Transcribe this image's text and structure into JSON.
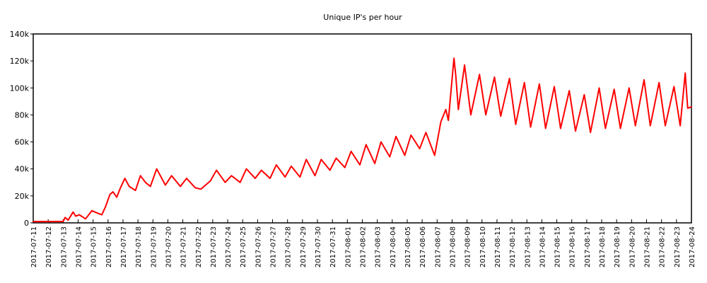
{
  "chart_data": {
    "type": "line",
    "title": "Unique IP's per hour",
    "xlabel": "",
    "ylabel": "",
    "ylim": [
      0,
      140000
    ],
    "yticks": [
      0,
      20000,
      40000,
      60000,
      80000,
      100000,
      120000,
      140000
    ],
    "ytick_labels": [
      "0",
      "20k",
      "40k",
      "60k",
      "80k",
      "100k",
      "120k",
      "140k"
    ],
    "x_range": [
      "2017-07-11",
      "2017-08-24"
    ],
    "xtick_labels": [
      "2017-07-11",
      "2017-07-12",
      "2017-07-13",
      "2017-07-14",
      "2017-07-15",
      "2017-07-16",
      "2017-07-17",
      "2017-07-18",
      "2017-07-19",
      "2017-07-20",
      "2017-07-21",
      "2017-07-22",
      "2017-07-23",
      "2017-07-24",
      "2017-07-25",
      "2017-07-26",
      "2017-07-27",
      "2017-07-28",
      "2017-07-29",
      "2017-07-30",
      "2017-07-31",
      "2017-08-01",
      "2017-08-02",
      "2017-08-03",
      "2017-08-04",
      "2017-08-05",
      "2017-08-06",
      "2017-08-07",
      "2017-08-08",
      "2017-08-09",
      "2017-08-10",
      "2017-08-11",
      "2017-08-12",
      "2017-08-13",
      "2017-08-14",
      "2017-08-15",
      "2017-08-16",
      "2017-08-17",
      "2017-08-18",
      "2017-08-19",
      "2017-08-20",
      "2017-08-21",
      "2017-08-22",
      "2017-08-23",
      "2017-08-24"
    ],
    "grid": false,
    "legend": false,
    "series": [
      {
        "color": "#ff0000",
        "x": [
          "2017-07-11 00:00",
          "2017-07-12 00:00",
          "2017-07-12 18:00",
          "2017-07-13 00:00",
          "2017-07-13 03:00",
          "2017-07-13 08:00",
          "2017-07-13 16:00",
          "2017-07-13 20:00",
          "2017-07-14 02:00",
          "2017-07-14 12:00",
          "2017-07-14 22:00",
          "2017-07-15 08:00",
          "2017-07-15 14:00",
          "2017-07-15 20:00",
          "2017-07-16 03:00",
          "2017-07-16 08:00",
          "2017-07-16 14:00",
          "2017-07-16 20:00",
          "2017-07-17 03:00",
          "2017-07-17 10:00",
          "2017-07-17 20:00",
          "2017-07-18 04:00",
          "2017-07-18 12:00",
          "2017-07-18 20:00",
          "2017-07-19 06:00",
          "2017-07-19 20:00",
          "2017-07-20 06:00",
          "2017-07-20 20:00",
          "2017-07-21 06:00",
          "2017-07-21 20:00",
          "2017-07-22 05:00",
          "2017-07-22 20:00",
          "2017-07-23 06:00",
          "2017-07-23 20:00",
          "2017-07-24 06:00",
          "2017-07-24 20:00",
          "2017-07-25 06:00",
          "2017-07-25 20:00",
          "2017-07-26 06:00",
          "2017-07-26 20:00",
          "2017-07-27 06:00",
          "2017-07-27 20:00",
          "2017-07-28 06:00",
          "2017-07-28 20:00",
          "2017-07-29 06:00",
          "2017-07-29 20:00",
          "2017-07-30 06:00",
          "2017-07-30 20:00",
          "2017-07-31 06:00",
          "2017-07-31 20:00",
          "2017-08-01 06:00",
          "2017-08-01 20:00",
          "2017-08-02 06:00",
          "2017-08-02 20:00",
          "2017-08-03 06:00",
          "2017-08-03 20:00",
          "2017-08-04 06:00",
          "2017-08-04 20:00",
          "2017-08-05 06:00",
          "2017-08-05 20:00",
          "2017-08-06 06:00",
          "2017-08-06 20:00",
          "2017-08-07 06:00",
          "2017-08-07 14:00",
          "2017-08-07 18:00",
          "2017-08-08 03:00",
          "2017-08-08 06:00",
          "2017-08-08 10:00",
          "2017-08-08 20:00",
          "2017-08-09 06:00",
          "2017-08-09 20:00",
          "2017-08-10 06:00",
          "2017-08-10 20:00",
          "2017-08-11 06:00",
          "2017-08-11 20:00",
          "2017-08-12 06:00",
          "2017-08-12 20:00",
          "2017-08-13 06:00",
          "2017-08-13 20:00",
          "2017-08-14 06:00",
          "2017-08-14 20:00",
          "2017-08-15 06:00",
          "2017-08-15 20:00",
          "2017-08-16 06:00",
          "2017-08-16 20:00",
          "2017-08-17 06:00",
          "2017-08-17 20:00",
          "2017-08-18 06:00",
          "2017-08-18 20:00",
          "2017-08-19 06:00",
          "2017-08-19 20:00",
          "2017-08-20 06:00",
          "2017-08-20 20:00",
          "2017-08-21 06:00",
          "2017-08-21 20:00",
          "2017-08-22 06:00",
          "2017-08-22 20:00",
          "2017-08-23 06:00",
          "2017-08-23 14:00",
          "2017-08-23 18:00",
          "2017-08-24 00:00"
        ],
        "y": [
          1000,
          1000,
          1000,
          1000,
          4000,
          2000,
          8000,
          5000,
          6000,
          3000,
          9000,
          7000,
          6000,
          12000,
          21000,
          23000,
          19000,
          26000,
          33000,
          27000,
          24000,
          35000,
          30000,
          27000,
          40000,
          28000,
          35000,
          27000,
          33000,
          26000,
          25000,
          31000,
          39000,
          30000,
          35000,
          30000,
          40000,
          33000,
          39000,
          33000,
          43000,
          34000,
          42000,
          34000,
          47000,
          35000,
          47000,
          39000,
          48000,
          41000,
          53000,
          43000,
          58000,
          44000,
          60000,
          49000,
          64000,
          50000,
          65000,
          55000,
          67000,
          50000,
          75000,
          84000,
          76000,
          122000,
          109000,
          84000,
          117000,
          80000,
          110000,
          80000,
          108000,
          79000,
          107000,
          73000,
          104000,
          71000,
          103000,
          70000,
          101000,
          70000,
          98000,
          68000,
          95000,
          67000,
          100000,
          70000,
          99000,
          70000,
          100000,
          72000,
          106000,
          72000,
          104000,
          72000,
          101000,
          72000,
          111000,
          85000,
          86000
        ]
      }
    ]
  }
}
